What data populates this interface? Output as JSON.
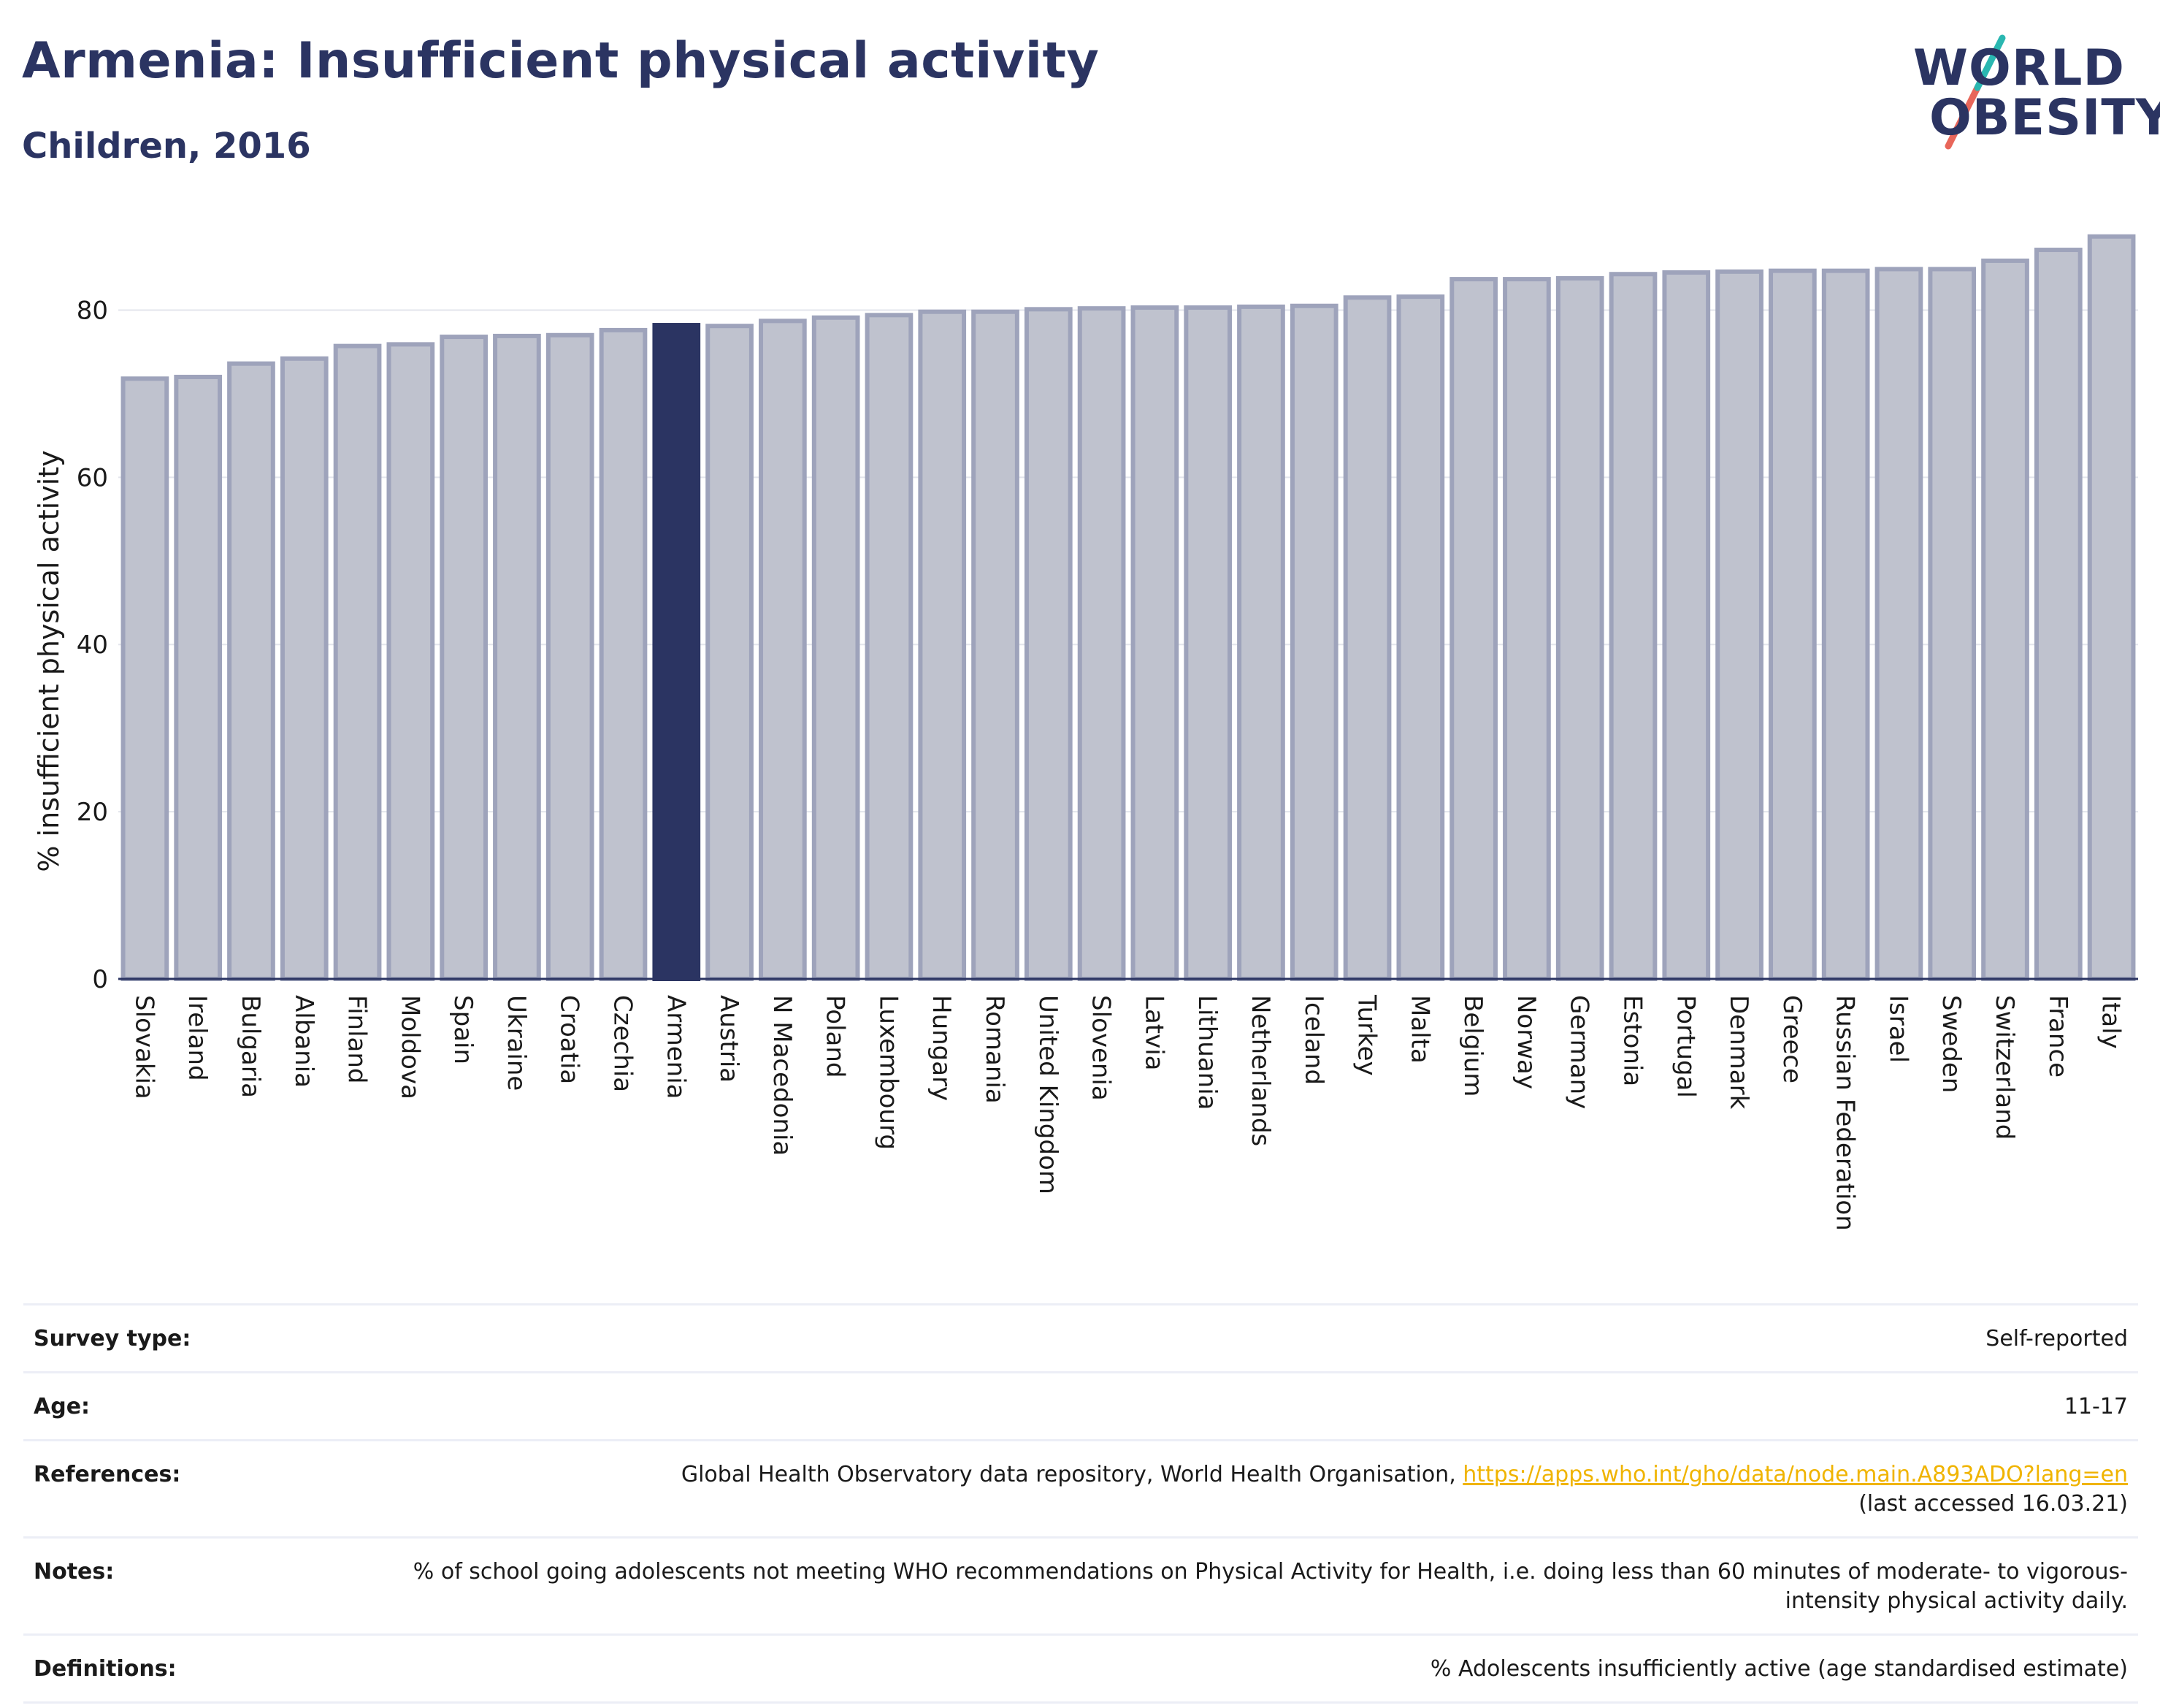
{
  "header": {
    "title": "Armenia: Insufficient physical activity",
    "subtitle": "Children, 2016"
  },
  "logo": {
    "line1": "WORLD",
    "line2": "OBESITY",
    "color": "#2b3462",
    "slash_color_top": "#2ab7b1",
    "slash_color_bottom": "#e8665a"
  },
  "chart_data": {
    "type": "bar",
    "ylabel": "% insufficient physical activity",
    "ylim": [
      0,
      90
    ],
    "yticks": [
      0,
      20,
      40,
      60,
      80
    ],
    "highlight": "Armenia",
    "colors": {
      "bar": "#bfc2ce",
      "bar_edge": "#9ea3bb",
      "highlight": "#2b3462"
    },
    "categories": [
      "Slovakia",
      "Ireland",
      "Bulgaria",
      "Albania",
      "Finland",
      "Moldova",
      "Spain",
      "Ukraine",
      "Croatia",
      "Czechia",
      "Armenia",
      "Austria",
      "N Macedonia",
      "Poland",
      "Luxembourg",
      "Hungary",
      "Romania",
      "United Kingdom",
      "Slovenia",
      "Latvia",
      "Lithuania",
      "Netherlands",
      "Iceland",
      "Turkey",
      "Malta",
      "Belgium",
      "Norway",
      "Germany",
      "Estonia",
      "Portugal",
      "Denmark",
      "Greece",
      "Russian Federation",
      "Israel",
      "Sweden",
      "Switzerland",
      "France",
      "Italy"
    ],
    "values": [
      71.8,
      72.0,
      73.6,
      74.2,
      75.7,
      75.9,
      76.8,
      76.9,
      77.0,
      77.6,
      78.2,
      78.1,
      78.7,
      79.1,
      79.4,
      79.8,
      79.8,
      80.1,
      80.2,
      80.3,
      80.3,
      80.4,
      80.5,
      81.5,
      81.6,
      83.7,
      83.7,
      83.8,
      84.3,
      84.5,
      84.6,
      84.7,
      84.7,
      84.9,
      84.9,
      85.9,
      87.2,
      88.8
    ]
  },
  "info": [
    {
      "label": "Survey type:",
      "value": "Self-reported"
    },
    {
      "label": "Age:",
      "value": "11-17"
    },
    {
      "label": "References:",
      "value_before": "Global Health Observatory data repository, World Health Organisation, ",
      "link": "https://apps.who.int/gho/data/node.main.A893ADO?lang=en",
      "value_after": "(last accessed 16.03.21)"
    },
    {
      "label": "Notes:",
      "value": "% of school going adolescents not meeting WHO recommendations on Physical Activity for Health, i.e. doing less than 60 minutes of moderate- to vigorous-intensity physical activity daily."
    },
    {
      "label": "Definitions:",
      "value": "% Adolescents insufficiently active (age standardised estimate)"
    }
  ]
}
